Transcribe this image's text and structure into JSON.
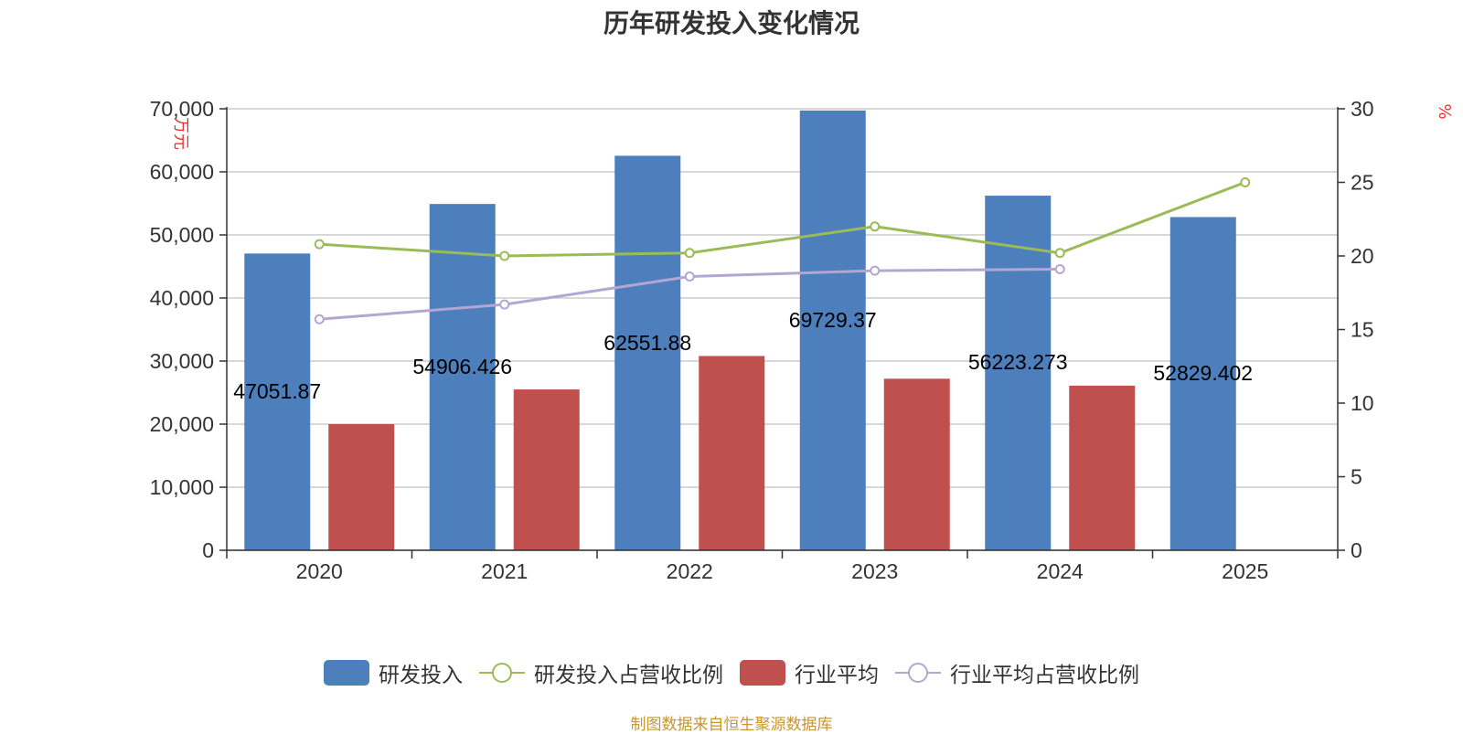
{
  "title": "历年研发投入变化情况",
  "source_note": "制图数据来自恒生聚源数据库",
  "colors": {
    "rd_bar": "#4e7fbd",
    "industry_bar": "#c0504d",
    "rd_ratio_line": "#9bbb59",
    "industry_ratio_line": "#b3a6d3",
    "axis_unit": "#e8312f"
  },
  "legend": [
    {
      "label": "研发投入",
      "kind": "bar",
      "color": "#4e7fbd"
    },
    {
      "label": "研发投入占营收比例",
      "kind": "line",
      "color": "#9bbb59"
    },
    {
      "label": "行业平均",
      "kind": "bar",
      "color": "#c0504d"
    },
    {
      "label": "行业平均占营收比例",
      "kind": "line",
      "color": "#b3a6d3"
    }
  ],
  "chart_data": {
    "type": "bar",
    "title": "历年研发投入变化情况",
    "categories": [
      "2020",
      "2021",
      "2022",
      "2023",
      "2024",
      "2025"
    ],
    "y_left": {
      "label": "万元",
      "ylim": [
        0,
        70000
      ],
      "ticks": [
        0,
        10000,
        20000,
        30000,
        40000,
        50000,
        60000,
        70000
      ],
      "tick_labels": [
        "0",
        "10,000",
        "20,000",
        "30,000",
        "40,000",
        "50,000",
        "60,000",
        "70,000"
      ]
    },
    "y_right": {
      "label": "%",
      "ylim": [
        0,
        30
      ],
      "ticks": [
        0,
        5,
        10,
        15,
        20,
        25,
        30
      ],
      "tick_labels": [
        "0",
        "5",
        "10",
        "15",
        "20",
        "25",
        "30"
      ]
    },
    "grid": true,
    "legend_position": "bottom",
    "series": [
      {
        "name": "研发投入",
        "type": "bar",
        "axis": "left",
        "values": [
          47051.87,
          54906.426,
          62551.88,
          69729.37,
          56223.273,
          52829.402
        ],
        "data_labels": [
          "47051.87",
          "54906.426",
          "62551.88",
          "69729.37",
          "56223.273",
          "52829.402"
        ]
      },
      {
        "name": "行业平均",
        "type": "bar",
        "axis": "left",
        "values": [
          20000,
          25500,
          30800,
          27200,
          26100,
          null
        ]
      },
      {
        "name": "研发投入占营收比例",
        "type": "line",
        "axis": "right",
        "values": [
          20.8,
          20.0,
          20.2,
          22.0,
          20.2,
          25.0
        ]
      },
      {
        "name": "行业平均占营收比例",
        "type": "line",
        "axis": "right",
        "values": [
          15.7,
          16.7,
          18.6,
          19.0,
          19.1,
          null
        ]
      }
    ]
  }
}
